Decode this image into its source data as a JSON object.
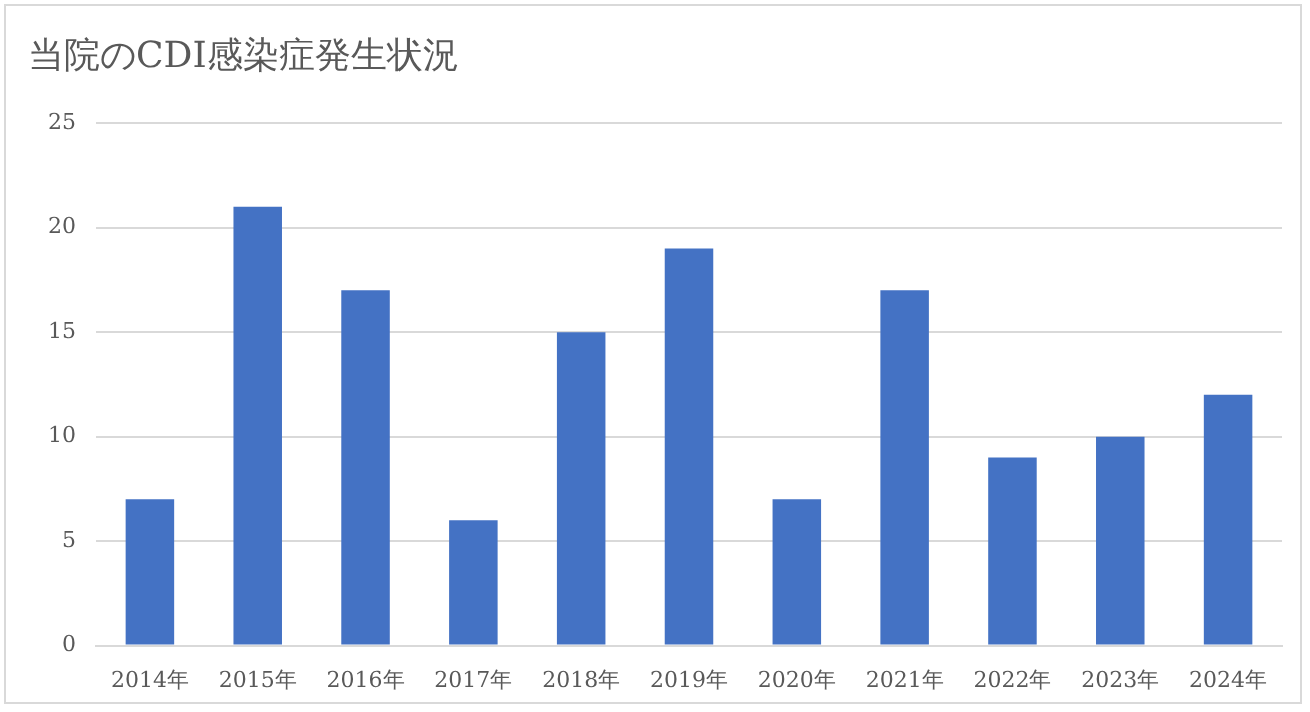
{
  "chart_data": {
    "type": "bar",
    "title": "当院のCDI感染症発生状況",
    "categories": [
      "2014年",
      "2015年",
      "2016年",
      "2017年",
      "2018年",
      "2019年",
      "2020年",
      "2021年",
      "2022年",
      "2023年",
      "2024年"
    ],
    "values": [
      7,
      21,
      17,
      6,
      15,
      19,
      7,
      17,
      9,
      10,
      12
    ],
    "color": "#4472c4",
    "ylim": [
      0,
      25
    ],
    "yticks": [
      0,
      5,
      10,
      15,
      20,
      25
    ],
    "grid": "y"
  }
}
